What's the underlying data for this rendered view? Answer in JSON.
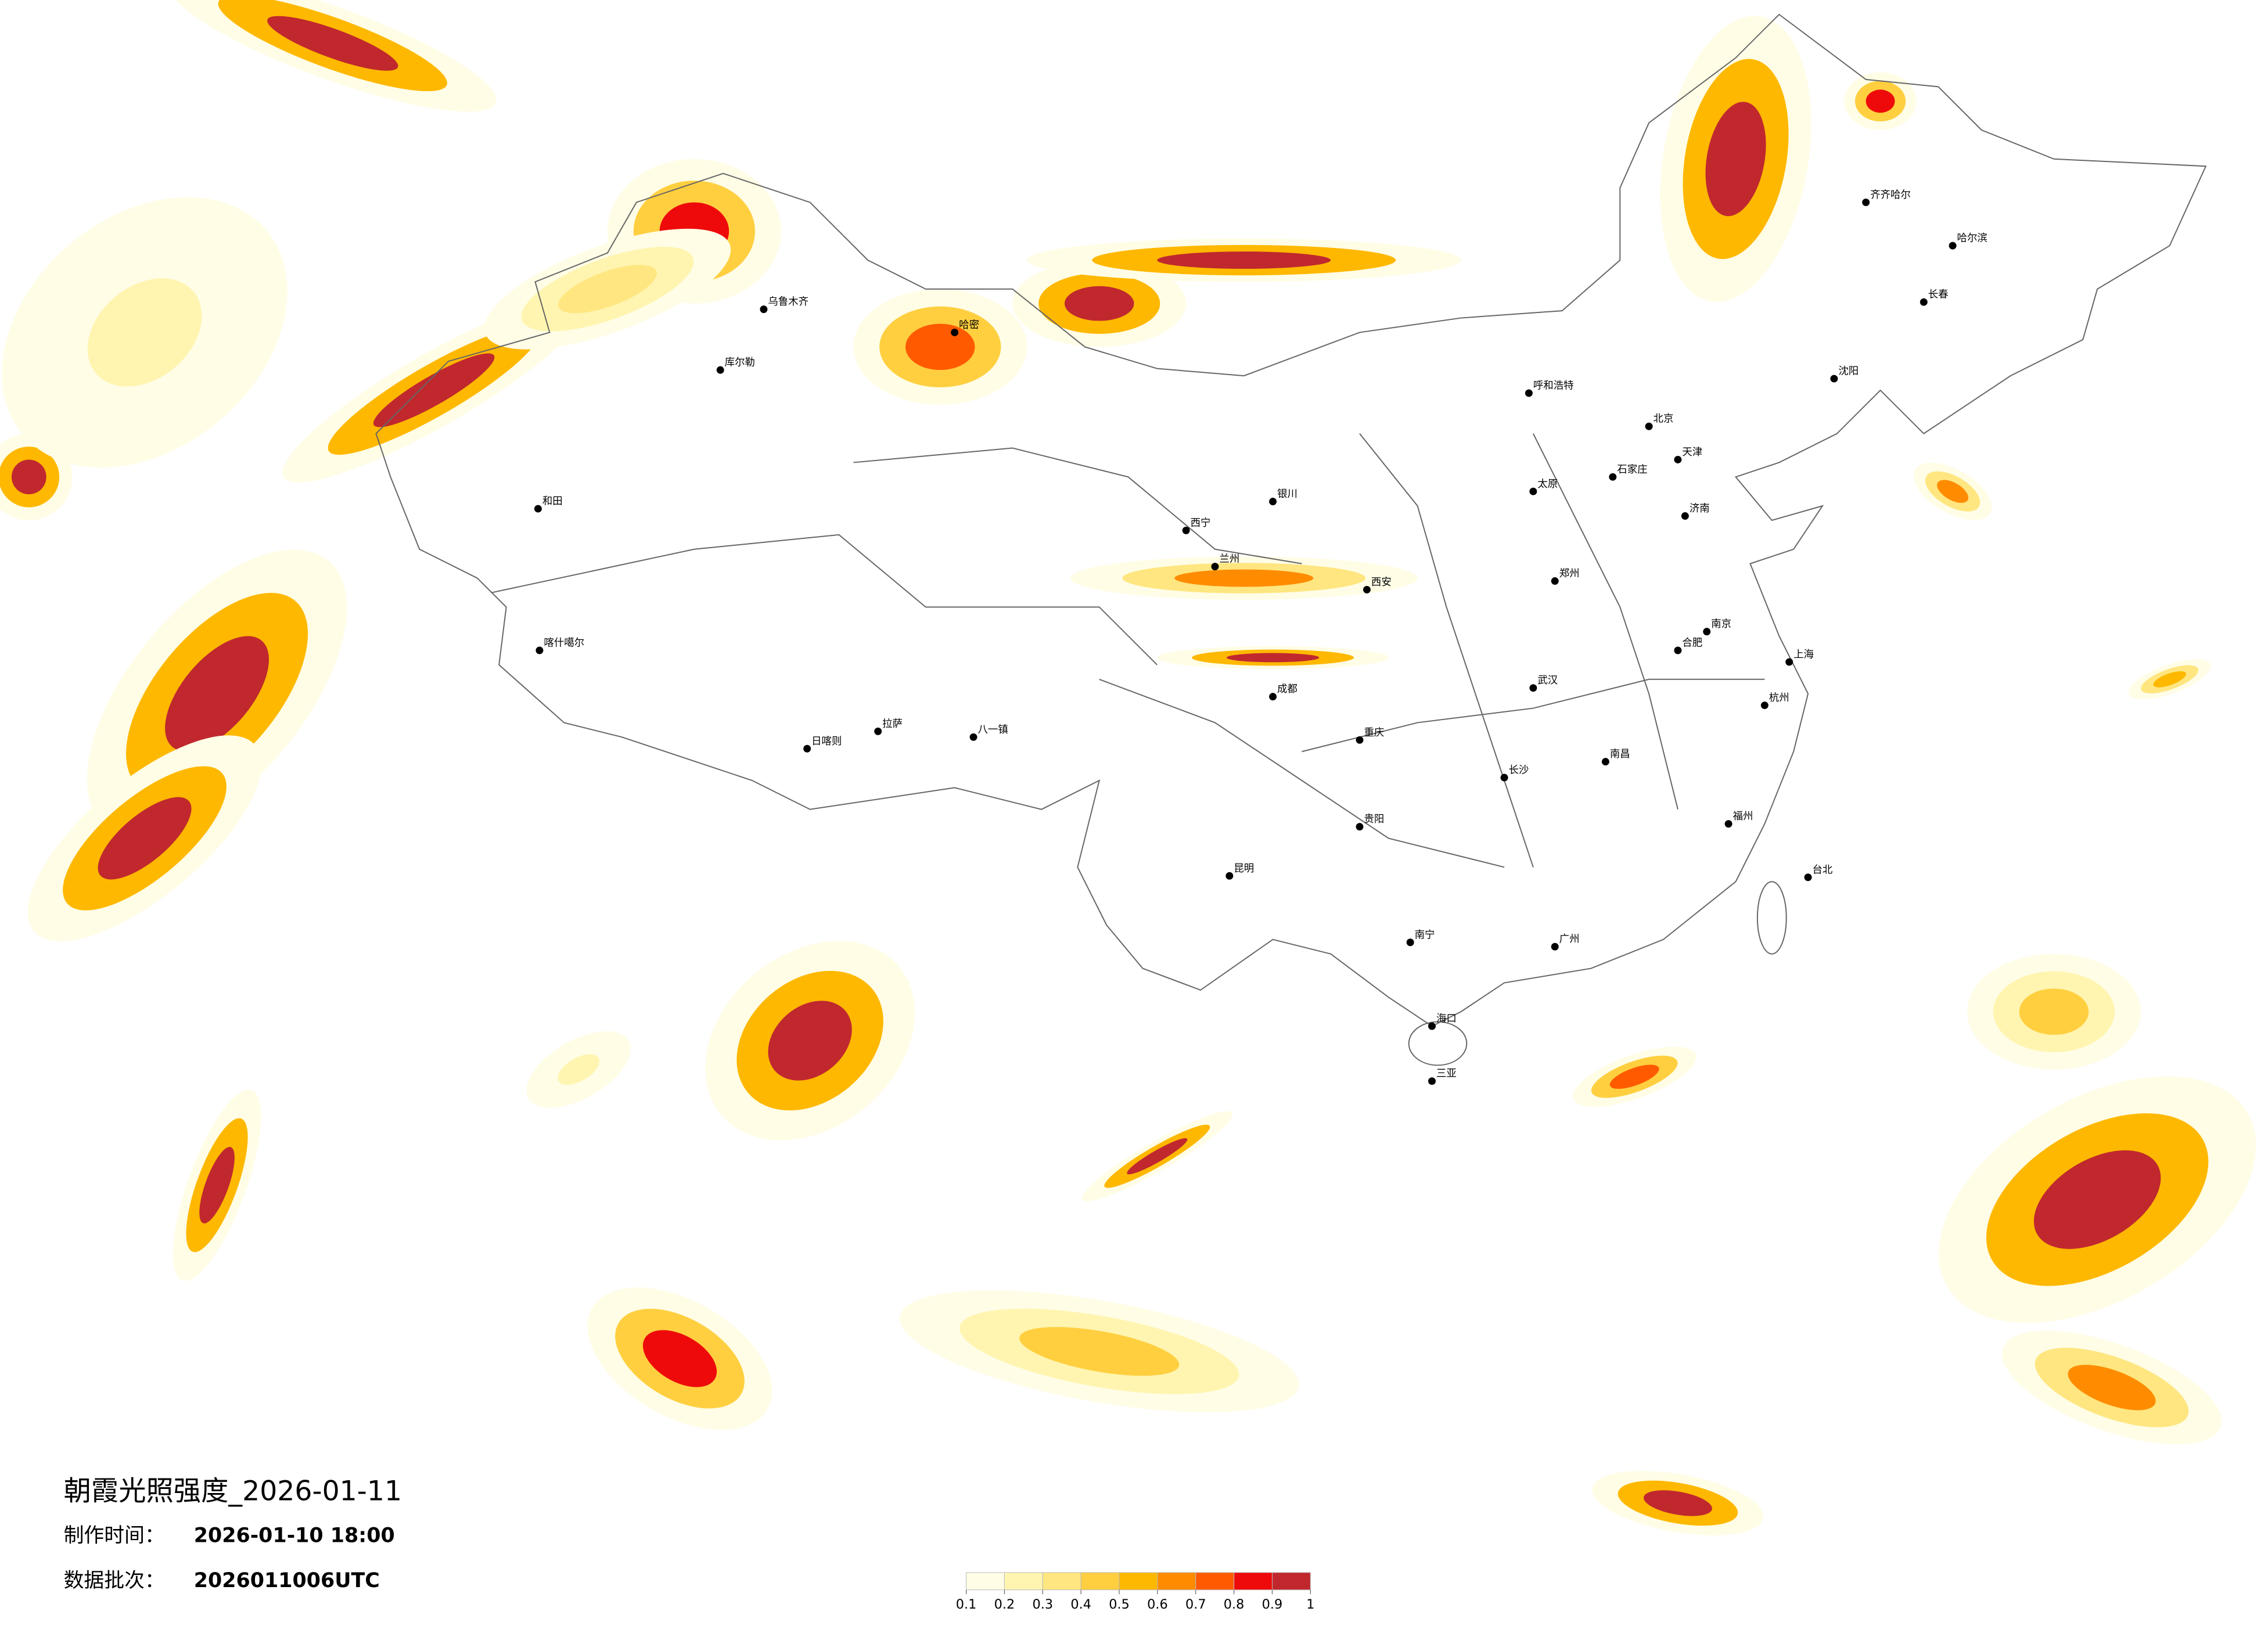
{
  "header": {
    "title": "朝霞光照强度_2026-01-11",
    "made_label": "制作时间：",
    "made_time": "2026-01-10 18:00",
    "batch_label": "数据批次：",
    "batch": "2026011006UTC"
  },
  "colorbar": {
    "ticks": [
      0.1,
      0.2,
      0.3,
      0.4,
      0.5,
      0.6,
      0.7,
      0.8,
      0.9,
      1
    ],
    "colors": [
      "#fffde6",
      "#fff5b0",
      "#ffe680",
      "#ffcf40",
      "#ffb800",
      "#ff8c00",
      "#ff5a00",
      "#ee0a0a",
      "#c0282e"
    ]
  },
  "cities": [
    "北京",
    "天津",
    "上海",
    "广州",
    "乌鲁木齐",
    "拉萨",
    "呼和浩特",
    "哈尔滨",
    "长春",
    "沈阳",
    "西安",
    "成都",
    "重庆",
    "昆明",
    "贵阳",
    "南宁",
    "福州",
    "武汉",
    "长沙",
    "南昌",
    "郑州",
    "济南",
    "杭州",
    "南京",
    "兰州",
    "西宁",
    "银川",
    "和田",
    "喀什噶尔",
    "日喀则",
    "八一镇",
    "库尔勒",
    "哈密",
    "台北",
    "海口",
    "三亚",
    "齐齐哈尔",
    "石家庄",
    "太原",
    "合肥"
  ]
}
